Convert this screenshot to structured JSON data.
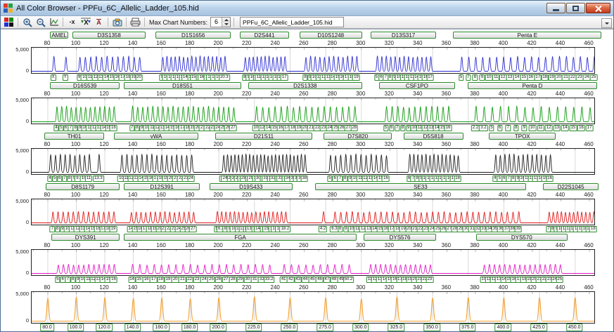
{
  "window": {
    "title": "All Color Browser - PPFu_6C_Allelic_Ladder_105.hid",
    "controls": [
      "minimize",
      "maximize",
      "close"
    ]
  },
  "toolbar": {
    "icons": [
      "color-grid-icon",
      "zoom-in-icon",
      "zoom-out-icon",
      "chart-scale-icon",
      "remove-size-icon",
      "size-match-icon",
      "allele-call-icon",
      "capture-icon",
      "print-icon"
    ],
    "glyphs": {
      "minus_x": "-x",
      "x_bar": "X",
      "a_bar": "A"
    },
    "max_chart_label": "Max Chart Numbers:",
    "max_chart_value": "6",
    "file_combo_value": "PPFu_6C_Allelic_Ladder_105.hid"
  },
  "chart_data": {
    "type": "line",
    "x_ticks": [
      80,
      100,
      120,
      140,
      160,
      180,
      200,
      220,
      240,
      260,
      280,
      300,
      320,
      340,
      360,
      380,
      400,
      420,
      440,
      460
    ],
    "grid_bps": [
      80,
      100,
      120,
      140,
      160,
      180,
      200,
      225,
      250,
      275,
      300,
      325,
      350,
      375,
      400,
      425,
      450
    ],
    "y_top_label": "5,000",
    "y_bottom_label": "0",
    "panels": [
      {
        "dye": "blue",
        "color": "#2a2ad0",
        "peak_ratio": 0.7,
        "markers": [
          {
            "name": "AMEL",
            "range": [
              82,
              95
            ],
            "alleles": [
              "X",
              "Y"
            ]
          },
          {
            "name": "D3S1358",
            "range": [
              98,
              149
            ],
            "alleles": [
              "9",
              "10",
              "11",
              "12",
              "13",
              "14",
              "15",
              "16",
              "17",
              "18",
              "19",
              "20"
            ]
          },
          {
            "name": "D1S1656",
            "range": [
              156,
              209
            ],
            "alleles": [
              "9",
              "10",
              "11",
              "12",
              "13",
              "14",
              "14.3",
              "15",
              "15.3",
              "16",
              "16.3",
              "17",
              "17.3",
              "18.3",
              "19.3",
              "20.3"
            ]
          },
          {
            "name": "D2S441",
            "range": [
              215,
              250
            ],
            "alleles": [
              "8",
              "9",
              "10",
              "11",
              "11.3",
              "12",
              "13",
              "14",
              "15",
              "16",
              "17"
            ]
          },
          {
            "name": "D10S1248",
            "range": [
              257,
              301
            ],
            "alleles": [
              "8",
              "9",
              "10",
              "11",
              "12",
              "13",
              "14",
              "15",
              "16",
              "17",
              "18",
              "19"
            ]
          },
          {
            "name": "D13S317",
            "range": [
              307,
              353
            ],
            "alleles": [
              "5",
              "6",
              "7",
              "8",
              "9",
              "10",
              "11",
              "12",
              "13",
              "14",
              "15",
              "16",
              "17"
            ]
          },
          {
            "name": "Penta E",
            "range": [
              365,
              469
            ],
            "alleles": [
              "5",
              "7",
              "8",
              "9",
              "10",
              "11",
              "12",
              "13",
              "14",
              "15",
              "16",
              "17",
              "18",
              "19",
              "20",
              "21",
              "22",
              "23",
              "24",
              "25"
            ]
          }
        ]
      },
      {
        "dye": "green",
        "color": "#0d9a0d",
        "peak_ratio": 0.72,
        "markers": [
          {
            "name": "D16S539",
            "range": [
              82,
              131
            ],
            "alleles": [
              "4",
              "5",
              "6",
              "7",
              "8",
              "9",
              "10",
              "11",
              "12",
              "13",
              "14",
              "15",
              "16"
            ]
          },
          {
            "name": "D18S51",
            "range": [
              134,
              216
            ],
            "alleles": [
              "7",
              "8",
              "9",
              "10",
              "11",
              "12",
              "13",
              "14",
              "15",
              "16",
              "17",
              "18",
              "19",
              "20",
              "21",
              "22",
              "23",
              "24",
              "25",
              "26",
              "27"
            ]
          },
          {
            "name": "D2S1338",
            "range": [
              221,
              301
            ],
            "alleles": [
              "10",
              "12",
              "14",
              "15",
              "16",
              "17",
              "18",
              "19",
              "20",
              "21",
              "22",
              "23",
              "24",
              "25",
              "26",
              "27",
              "28"
            ]
          },
          {
            "name": "CSF1PO",
            "range": [
              313,
              366
            ],
            "alleles": [
              "5",
              "6",
              "7",
              "8",
              "9",
              "10",
              "11",
              "12",
              "13",
              "14",
              "15",
              "16"
            ]
          },
          {
            "name": "Penta D",
            "range": [
              375,
              466
            ],
            "alleles": [
              "2.2",
              "3.2",
              "5",
              "6",
              "7",
              "8",
              "9",
              "10",
              "11",
              "12",
              "13",
              "14",
              "15",
              "16",
              "17"
            ]
          }
        ]
      },
      {
        "dye": "black",
        "color": "#1b1b1b",
        "peak_ratio": 0.84,
        "markers": [
          {
            "name": "TH01",
            "range": [
              78,
              120
            ],
            "alleles": [
              "4",
              "5",
              "6",
              "7",
              "8",
              "9",
              "9.3",
              "10",
              "11",
              null,
              "13.3"
            ]
          },
          {
            "name": "vWA",
            "range": [
              127,
              186
            ],
            "alleles": [
              "10",
              "11",
              "12",
              "13",
              "14",
              "15",
              "16",
              "17",
              "18",
              "19",
              "20",
              "21",
              "22",
              "23",
              "24"
            ]
          },
          {
            "name": "D21S11",
            "range": [
              198,
              266
            ],
            "alleles": [
              "24",
              "24.2",
              "25",
              "26",
              "27",
              "28",
              "28.2",
              "29",
              "29.2",
              "30",
              "30.2",
              "31",
              "31.2",
              "32",
              "32.2",
              "33",
              "33.2",
              "34",
              "34.2",
              "35",
              "36",
              "37",
              "38"
            ]
          },
          {
            "name": "D7S820",
            "range": [
              274,
              322
            ],
            "alleles": [
              "5",
              "6",
              "7",
              "8",
              "9",
              "10",
              "11",
              "12",
              "13",
              "14",
              "15",
              "16"
            ]
          },
          {
            "name": "D5S818",
            "range": [
              330,
              372
            ],
            "alleles": [
              "6",
              "7",
              "8",
              "9",
              "10",
              "11",
              "12",
              "13",
              "14",
              "15",
              "16",
              "17",
              "18"
            ]
          },
          {
            "name": "TPOX",
            "range": [
              390,
              437
            ],
            "alleles": [
              "4",
              "5",
              "6",
              "7",
              "8",
              "9",
              "10",
              "11",
              "12",
              "13",
              "14",
              "15",
              "16"
            ]
          }
        ]
      },
      {
        "dye": "red",
        "color": "#e01414",
        "peak_ratio": 0.52,
        "markers": [
          {
            "name": "D8S1179",
            "range": [
              79,
              131
            ],
            "alleles": [
              "7",
              "8",
              "9",
              "10",
              "11",
              "12",
              "13",
              "14",
              "15",
              "16",
              "17",
              "18",
              "19"
            ]
          },
          {
            "name": "D12S391",
            "range": [
              134,
              187
            ],
            "alleles": [
              "14",
              "15",
              "16",
              "17",
              "18",
              "19",
              "20",
              "21",
              "22",
              "23",
              "24",
              "25",
              "26",
              "27"
            ]
          },
          {
            "name": "D19S433",
            "range": [
              194,
              252
            ],
            "alleles": [
              "5",
              "6.2",
              "8",
              "9",
              "10",
              "11",
              "12",
              "13",
              "13.2",
              "14",
              "14.2",
              "15",
              "15.2",
              "16",
              "16.2",
              "17.2",
              "18.2"
            ]
          },
          {
            "name": "SE33",
            "range": [
              268,
              416
            ],
            "alleles": [
              "4.2",
              null,
              "6.3",
              "8",
              "9",
              "10",
              "11",
              "12",
              "13",
              "14",
              "15",
              "16",
              "17",
              "18",
              "19",
              "20",
              "21",
              "22",
              "23",
              "24",
              "25",
              "26",
              "27",
              "28",
              "29",
              "30",
              "31",
              "32",
              "33",
              "34",
              "35",
              "36",
              "37",
              "38",
              "39"
            ]
          },
          {
            "name": "D22S1045",
            "range": [
              428,
              467
            ],
            "alleles": [
              "7",
              "8",
              "9",
              "10",
              "11",
              "12",
              "13",
              "14",
              "15",
              "16",
              "17",
              "18"
            ]
          }
        ]
      },
      {
        "dye": "magenta",
        "color": "#e316c6",
        "peak_ratio": 0.42,
        "markers": [
          {
            "name": "DYS391",
            "range": [
              83,
              131
            ],
            "alleles": [
              "5",
              "6",
              "7",
              "8",
              "9",
              "10",
              "11",
              "12",
              "13",
              "14",
              "15",
              "16"
            ]
          },
          {
            "name": "FGA",
            "range": [
              134,
              297
            ],
            "alleles": [
              "14",
              "15",
              "16",
              "17",
              "18",
              "19",
              "20",
              "21",
              "22",
              "23",
              "24",
              "25",
              "26",
              "27",
              "28",
              "29",
              "30",
              "31",
              "32",
              "33.2",
              null,
              "41",
              "42",
              "43",
              "44",
              "45",
              "46",
              "47",
              "48",
              "49",
              "50.2"
            ]
          },
          {
            "name": "DYS576",
            "range": [
              302,
              353
            ],
            "alleles": [
              "11",
              "12",
              "13",
              "14",
              "15",
              "16",
              "17",
              "18",
              "19",
              "20",
              "21",
              "22",
              "23"
            ]
          },
          {
            "name": "DYS570",
            "range": [
              381,
              445
            ],
            "alleles": [
              "10",
              "11",
              "12",
              "13",
              "14",
              "15",
              "16",
              "17",
              "18",
              "19",
              "20",
              "21",
              "22",
              "23",
              "24",
              "25"
            ]
          }
        ]
      },
      {
        "dye": "orange",
        "color": "#f5a02d",
        "peak_ratio": 0.88,
        "size_standard": [
          {
            "bp": 80,
            "label": "80.0"
          },
          {
            "bp": 100,
            "label": "100.0"
          },
          {
            "bp": 120,
            "label": "120.0"
          },
          {
            "bp": 140,
            "label": "140.0"
          },
          {
            "bp": 160,
            "label": "160.0"
          },
          {
            "bp": 180,
            "label": "180.0"
          },
          {
            "bp": 200,
            "label": "200.0"
          },
          {
            "bp": 225,
            "label": "225.0"
          },
          {
            "bp": 250,
            "label": "250.0"
          },
          {
            "bp": 275,
            "label": "275.0"
          },
          {
            "bp": 300,
            "label": "300.0"
          },
          {
            "bp": 325,
            "label": "325.0"
          },
          {
            "bp": 350,
            "label": "350.0"
          },
          {
            "bp": 375,
            "label": "375.0"
          },
          {
            "bp": 400,
            "label": "400.0"
          },
          {
            "bp": 425,
            "label": "425.0"
          },
          {
            "bp": 450,
            "label": "450.0"
          }
        ]
      }
    ]
  }
}
